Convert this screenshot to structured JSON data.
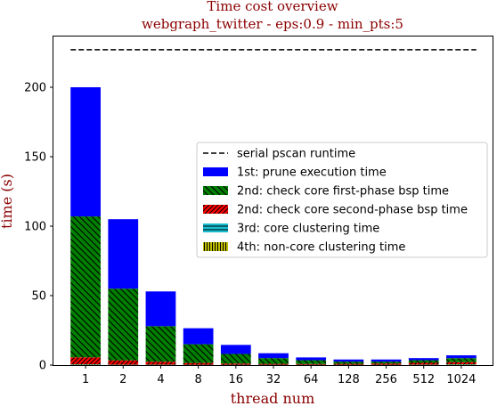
{
  "chart_data": {
    "type": "bar",
    "stacked": true,
    "title": "Time cost overview",
    "subtitle": "webgraph_twitter - eps:0.9 - min_pts:5",
    "xlabel": "thread num",
    "ylabel": "time (s)",
    "categories": [
      "1",
      "2",
      "4",
      "8",
      "16",
      "32",
      "64",
      "128",
      "256",
      "512",
      "1024"
    ],
    "ylim": [
      0,
      230
    ],
    "yticks": [
      0,
      50,
      100,
      150,
      200
    ],
    "grid": false,
    "legend_position": "center-right",
    "reference_line": {
      "name": "serial pscan runtime",
      "value": 227,
      "style": "dashed",
      "color": "#000000"
    },
    "series": [
      {
        "name": "4th: non-core clustering time",
        "color": "#bfbf00",
        "hatch": "vertical",
        "values": [
          0.3,
          0.2,
          0.2,
          0.15,
          0.15,
          0.15,
          0.15,
          0.15,
          0.15,
          0.2,
          0.3
        ]
      },
      {
        "name": "3rd: core clustering time",
        "color": "#17becf",
        "hatch": "horizontal",
        "values": [
          0.3,
          0.2,
          0.2,
          0.15,
          0.15,
          0.15,
          0.15,
          0.15,
          0.15,
          0.2,
          0.3
        ]
      },
      {
        "name": "2nd: check core second-phase bsp time",
        "color": "#ff0000",
        "hatch": "diagonal-up",
        "values": [
          5,
          3,
          2,
          1.2,
          0.8,
          0.6,
          0.5,
          0.6,
          0.8,
          1.2,
          1.5
        ]
      },
      {
        "name": "2nd: check core first-phase bsp time",
        "color": "#008000",
        "hatch": "diagonal-down",
        "values": [
          101.4,
          51.6,
          25.6,
          13.5,
          6.9,
          4.1,
          2.7,
          1.6,
          1.4,
          1.9,
          2.9
        ]
      },
      {
        "name": "1st: prune execution time",
        "color": "#0000ff",
        "hatch": "none",
        "values": [
          93,
          50,
          25,
          11.5,
          6.5,
          3.5,
          2,
          1.5,
          1.5,
          1.5,
          2
        ]
      }
    ],
    "legend_order": [
      "serial pscan runtime",
      "1st: prune execution time",
      "2nd: check core first-phase bsp time",
      "2nd: check core second-phase bsp time",
      "3rd: core clustering time",
      "4th: non-core clustering time"
    ]
  }
}
